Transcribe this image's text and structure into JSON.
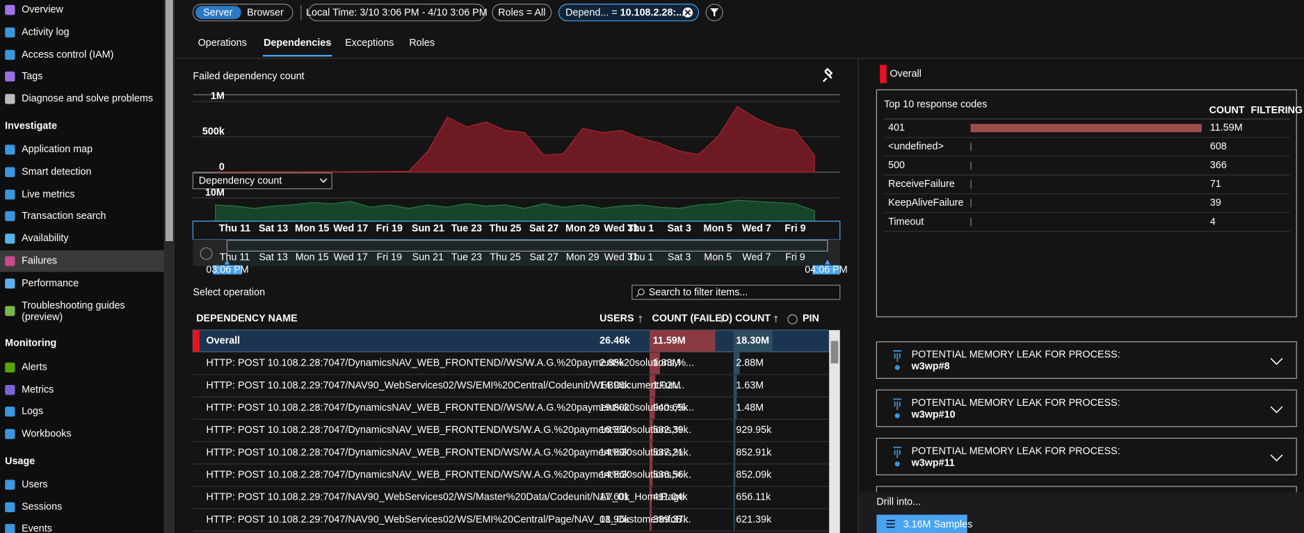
{
  "sidebar": {
    "items": [
      {
        "label": "Overview"
      },
      {
        "label": "Activity log"
      },
      {
        "label": "Access control (IAM)"
      },
      {
        "label": "Tags"
      },
      {
        "label": "Diagnose and solve problems"
      },
      {
        "section": "Investigate"
      },
      {
        "label": "Application map"
      },
      {
        "label": "Smart detection"
      },
      {
        "label": "Live metrics"
      },
      {
        "label": "Transaction search"
      },
      {
        "label": "Availability"
      },
      {
        "label": "Failures",
        "selected": true
      },
      {
        "label": "Performance"
      },
      {
        "label": "Troubleshooting guides (preview)"
      },
      {
        "section": "Monitoring"
      },
      {
        "label": "Alerts"
      },
      {
        "label": "Metrics"
      },
      {
        "label": "Logs"
      },
      {
        "label": "Workbooks"
      },
      {
        "section": "Usage"
      },
      {
        "label": "Users"
      },
      {
        "label": "Sessions"
      },
      {
        "label": "Events"
      }
    ]
  },
  "toolbar": {
    "toggle": [
      {
        "label": "Server",
        "active": true
      },
      {
        "label": "Browser"
      }
    ],
    "time_range": "Local Time: 3/10 3:06 PM - 4/10 3:06 PM",
    "roles": "Roles = All",
    "filter": {
      "key": "Depend... = ",
      "value": "10.108.2.28:..."
    }
  },
  "tabs": [
    {
      "label": "Operations"
    },
    {
      "label": "Dependencies",
      "active": true
    },
    {
      "label": "Exceptions"
    },
    {
      "label": "Roles"
    }
  ],
  "chart_data": [
    {
      "type": "area",
      "title": "Failed dependency count",
      "color": "#6e1a22",
      "line_color": "#a8262f",
      "values": [
        4000,
        4000,
        5000,
        5000,
        5000,
        6000,
        6000,
        7000,
        8000,
        9000,
        12000,
        300000,
        780000,
        640000,
        710000,
        590000,
        560000,
        240000,
        260000,
        620000,
        560000,
        590000,
        480000,
        410000,
        300000,
        250000,
        500000,
        930000,
        760000,
        640000,
        590000,
        240000
      ],
      "ylim": [
        0,
        1000000
      ],
      "yticks": [
        0,
        {
          "value": 500000,
          "label": "500k"
        },
        {
          "value": 1000000,
          "label": "1M"
        }
      ],
      "grid": true
    },
    {
      "type": "area",
      "title": "Dependency count",
      "color": "#17452a",
      "line_color": "#2a7a3f",
      "categories": [
        null,
        "Thu 11",
        null,
        "Sat 13",
        null,
        "Mon 15",
        null,
        "Wed 17",
        null,
        "Fri 19",
        null,
        "Sun 21",
        null,
        "Tue 23",
        null,
        "Thu 25",
        null,
        "Sat 27",
        null,
        "Mon 29",
        null,
        "Wed 31",
        "Thu 1",
        null,
        "Sat 3",
        null,
        "Mon 5",
        null,
        "Wed 7",
        null,
        "Fri 9",
        null
      ],
      "values": [
        7000000,
        6500000,
        5500000,
        6500000,
        7000000,
        8000000,
        7500000,
        8500000,
        6000000,
        7000000,
        5500000,
        7000000,
        6000000,
        7500000,
        6500000,
        7000000,
        5500000,
        7500000,
        6000000,
        7000000,
        5500000,
        6500000,
        7000000,
        6000000,
        5500000,
        7000000,
        7500000,
        9000000,
        8500000,
        8000000,
        7500000,
        4500000
      ],
      "ylim": [
        0,
        10000000
      ],
      "yticks": [
        0,
        {
          "value": 10000000,
          "label": "10M"
        }
      ],
      "grid": true
    }
  ],
  "brush": {
    "start": "03:06 PM",
    "end": "04:06 PM"
  },
  "operations": {
    "title": "Select operation",
    "search_placeholder": "Search to filter items...",
    "columns": [
      "DEPENDENCY NAME",
      "USERS",
      "COUNT (FAILED)",
      "COUNT",
      "PIN"
    ],
    "rows": [
      {
        "name": "Overall",
        "users": "26.46k",
        "failed": {
          "value": 11590000,
          "label": "11.59M"
        },
        "count": {
          "value": 18300000,
          "label": "18.30M"
        }
      },
      {
        "name": "HTTP: POST 10.108.2.28:7047/DynamicsNAV_WEB_FRONTEND//WS/W.A.G.%20payment%20solutions,%...",
        "users": "2.88k",
        "failed": {
          "value": 1830000,
          "label": "1.83M"
        },
        "count": {
          "value": 2880000,
          "label": "2.88M"
        }
      },
      {
        "name": "HTTP: POST 10.108.2.29:7047/NAV90_WebServices02/WS/EMI%20Central/Codeunit/WEBDocumentFun...",
        "users": "14.96k",
        "failed": {
          "value": 1020000,
          "label": "1.02M"
        },
        "count": {
          "value": 1630000,
          "label": "1.63M"
        }
      },
      {
        "name": "HTTP: POST 10.108.2.28:7047/DynamicsNAV_WEB_FRONTEND//WS/W.A.G.%20payment%20solutions,%...",
        "users": "19.80k",
        "failed": {
          "value": 940650,
          "label": "940.65k"
        },
        "count": {
          "value": 1480000,
          "label": "1.48M"
        }
      },
      {
        "name": "HTTP: POST 10.108.2.28:7047/DynamicsNAV_WEB_FRONTEND/WS/W.A.G.%20payment%20solutions,%...",
        "users": "16.35k",
        "failed": {
          "value": 582390,
          "label": "582.39k"
        },
        "count": {
          "value": 929950,
          "label": "929.95k"
        }
      },
      {
        "name": "HTTP: POST 10.108.2.28:7047/DynamicsNAV_WEB_FRONTEND/WS/W.A.G.%20payment%20solutions,%...",
        "users": "14.89k",
        "failed": {
          "value": 537210,
          "label": "537.21k"
        },
        "count": {
          "value": 852910,
          "label": "852.91k"
        }
      },
      {
        "name": "HTTP: POST 10.108.2.28:7047/DynamicsNAV_WEB_FRONTEND/WS/W.A.G.%20payment%20solutions,%...",
        "users": "14.86k",
        "failed": {
          "value": 536560,
          "label": "536.56k"
        },
        "count": {
          "value": 852090,
          "label": "852.09k"
        }
      },
      {
        "name": "HTTP: POST 10.108.2.29:7047/NAV90_WebServices02/WS/Master%20Data/Codeunit/NAV_01_HomePage",
        "users": "17.60k",
        "failed": {
          "value": 411040,
          "label": "411.04k"
        },
        "count": {
          "value": 656110,
          "label": "656.11k"
        }
      },
      {
        "name": "HTTP: POST 10.108.2.29:7047/NAV90_WebServices02/WS/EMI%20Central/Page/NAV_01_CustomerInfoB...",
        "users": "18.96k",
        "failed": {
          "value": 389370,
          "label": "389.37k"
        },
        "count": {
          "value": 621390,
          "label": "621.39k"
        }
      }
    ]
  },
  "response_codes": {
    "scope": "Overall",
    "title": "Top 10 response codes",
    "columns": [
      "COUNT",
      "FILTERING"
    ],
    "rows": [
      {
        "code": "401",
        "count": {
          "value": 11590000,
          "label": "11.59M"
        }
      },
      {
        "code": "<undefined>",
        "count": 608
      },
      {
        "code": "500",
        "count": 366
      },
      {
        "code": "ReceiveFailure",
        "count": 71
      },
      {
        "code": "KeepAliveFailure",
        "count": 39
      },
      {
        "code": "Timeout",
        "count": 4
      }
    ]
  },
  "insights": [
    {
      "heading": "POTENTIAL MEMORY LEAK FOR PROCESS:",
      "process": "w3wp#8"
    },
    {
      "heading": "POTENTIAL MEMORY LEAK FOR PROCESS:",
      "process": "w3wp#10"
    },
    {
      "heading": "POTENTIAL MEMORY LEAK FOR PROCESS:",
      "process": "w3wp#11"
    }
  ],
  "drill": {
    "title": "Drill into...",
    "button": "3.16M Samples"
  }
}
